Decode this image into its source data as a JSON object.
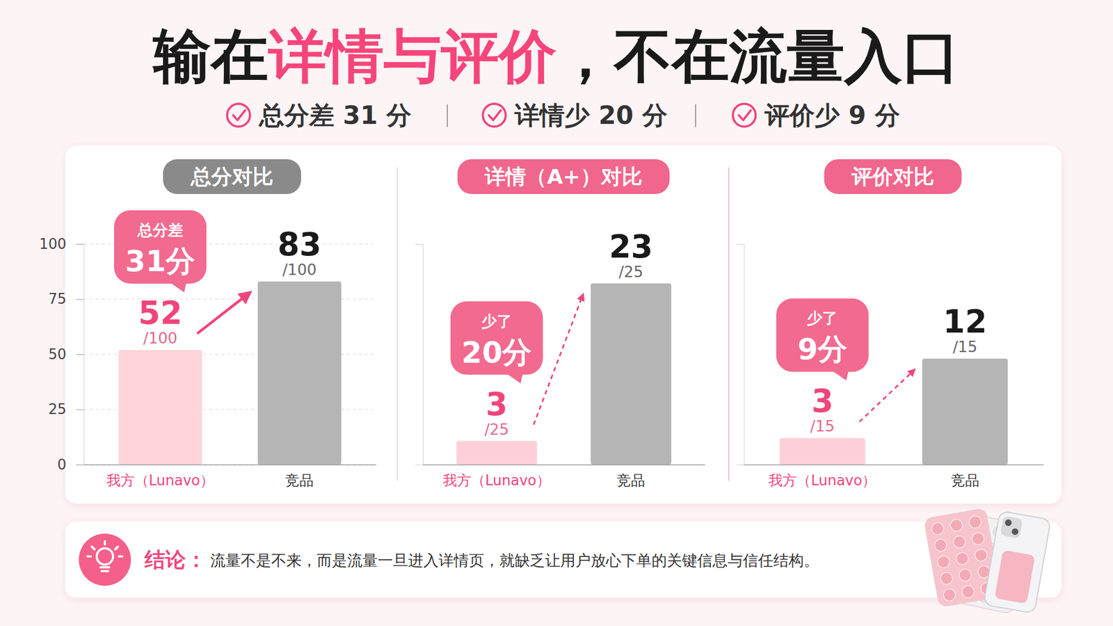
{
  "header": {
    "title_start": "输在",
    "title_highlight": "详情与评价",
    "title_end": "，不在流量入口",
    "highlights": [
      "总分差 31 分",
      "详情少 20 分",
      "评价少 9 分"
    ]
  },
  "chart_data": [
    {
      "type": "bar",
      "title": "总分对比",
      "categories": [
        "我方（Lunavo）",
        "竞品"
      ],
      "values": [
        52,
        83
      ],
      "colors": [
        "#fdd5da",
        "#b5b5b5"
      ],
      "ylim": [
        0,
        100
      ],
      "yticks": [
        0,
        25,
        50,
        75,
        100
      ],
      "grid": true,
      "data_labels": true,
      "denominator_label": "/100",
      "callout": {
        "label": "总分差",
        "value_label": "31分"
      }
    },
    {
      "type": "bar",
      "title": "详情（A+）对比",
      "categories": [
        "我方（Lunavo）",
        "竞品"
      ],
      "values": [
        3,
        23
      ],
      "colors": [
        "#fdd0d9",
        "#b5b5b5"
      ],
      "ylim": [
        0,
        28
      ],
      "grid": false,
      "tick_labels": false,
      "data_labels": true,
      "denominator_label": "/25",
      "callout": {
        "label": "少了",
        "value_label": "20分"
      }
    },
    {
      "type": "bar",
      "title": "评价对比",
      "categories": [
        "我方（Lunavo）",
        "竞品"
      ],
      "values": [
        3,
        12
      ],
      "colors": [
        "#fdd0d9",
        "#b5b5b5"
      ],
      "ylim": [
        0,
        25
      ],
      "grid": false,
      "tick_labels": false,
      "data_labels": true,
      "denominator_label": "/15",
      "callout": {
        "label": "少了",
        "value_label": "9分"
      }
    }
  ],
  "conclusion": {
    "label": "结论：",
    "text": "流量不是不来，而是流量一旦进入详情页，就缺乏让用户放心下单的关键信息与信任结构。"
  }
}
